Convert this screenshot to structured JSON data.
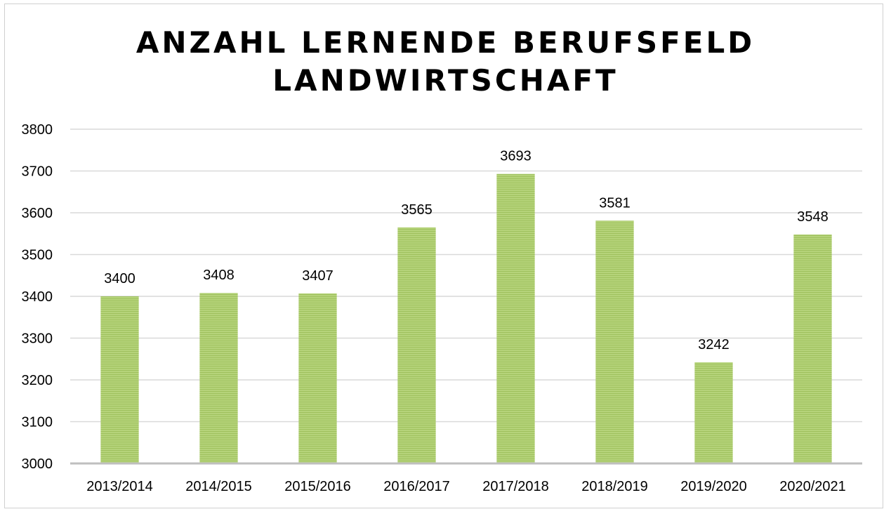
{
  "chart_data": {
    "type": "bar",
    "title_lines": [
      "ANZAHL LERNENDE BERUFSFELD",
      "LANDWIRTSCHAFT"
    ],
    "categories": [
      "2013/2014",
      "2014/2015",
      "2015/2016",
      "2016/2017",
      "2017/2018",
      "2018/2019",
      "2019/2020",
      "2020/2021"
    ],
    "values": [
      3400,
      3408,
      3407,
      3565,
      3693,
      3581,
      3242,
      3548
    ],
    "ylim": [
      3000,
      3800
    ],
    "yticks": [
      3000,
      3100,
      3200,
      3300,
      3400,
      3500,
      3600,
      3700,
      3800
    ],
    "grid": true,
    "data_labels": true,
    "bar_color": "#a9c96b",
    "grid_color": "#d9d9d9",
    "axis_color": "#bfbfbf"
  }
}
